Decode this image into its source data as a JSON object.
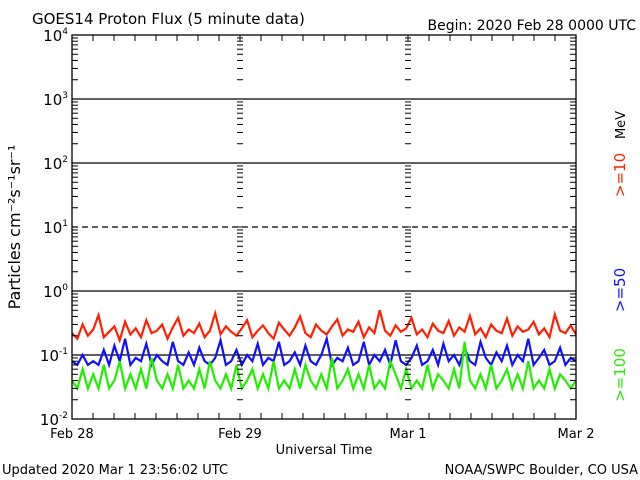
{
  "chart_data": {
    "type": "line",
    "title": "GOES14 Proton Flux (5 minute data)",
    "begin_label": "Begin: 2020 Feb 28 0000 UTC",
    "xlabel": "Universal Time",
    "ylabel": "Particles cm⁻²s⁻¹sr⁻¹",
    "yscale": "log",
    "ylim": [
      0.01,
      10000
    ],
    "ytick_labels": [
      {
        "base": "10",
        "exp": "4",
        "value": 10000
      },
      {
        "base": "10",
        "exp": "3",
        "value": 1000
      },
      {
        "base": "10",
        "exp": "2",
        "value": 100
      },
      {
        "base": "10",
        "exp": "1",
        "value": 10
      },
      {
        "base": "10",
        "exp": "0",
        "value": 1
      },
      {
        "base": "10",
        "exp": "-1",
        "value": 0.1
      },
      {
        "base": "10",
        "exp": "-2",
        "value": 0.01
      }
    ],
    "xtick_labels": [
      "Feb 28",
      "Feb 29",
      "Mar 1",
      "Mar 2"
    ],
    "xlim_days": [
      0,
      3
    ],
    "units_label": "MeV",
    "grid": "horizontal lines at each decade; dashed at 10^1",
    "series": [
      {
        "name": ">=10",
        "color": "#ff2000",
        "values": [
          0.22,
          0.18,
          0.3,
          0.2,
          0.25,
          0.42,
          0.19,
          0.23,
          0.28,
          0.17,
          0.33,
          0.21,
          0.26,
          0.19,
          0.35,
          0.22,
          0.24,
          0.3,
          0.18,
          0.27,
          0.38,
          0.2,
          0.25,
          0.22,
          0.31,
          0.19,
          0.24,
          0.45,
          0.21,
          0.28,
          0.23,
          0.2,
          0.26,
          0.35,
          0.19,
          0.24,
          0.29,
          0.22,
          0.18,
          0.32,
          0.25,
          0.2,
          0.27,
          0.4,
          0.22,
          0.19,
          0.3,
          0.24,
          0.21,
          0.28,
          0.36,
          0.2,
          0.25,
          0.23,
          0.33,
          0.19,
          0.27,
          0.22,
          0.5,
          0.24,
          0.2,
          0.29,
          0.23,
          0.26,
          0.38,
          0.21,
          0.25,
          0.19,
          0.31,
          0.24,
          0.22,
          0.34,
          0.2,
          0.27,
          0.23,
          0.41,
          0.21,
          0.26,
          0.19,
          0.3,
          0.24,
          0.22,
          0.37,
          0.2,
          0.28,
          0.23,
          0.25,
          0.33,
          0.21,
          0.26,
          0.19,
          0.43,
          0.24,
          0.22,
          0.29,
          0.21
        ]
      },
      {
        "name": ">=50",
        "color": "#1010ff",
        "values": [
          0.08,
          0.07,
          0.1,
          0.07,
          0.08,
          0.07,
          0.12,
          0.07,
          0.14,
          0.08,
          0.18,
          0.07,
          0.09,
          0.08,
          0.15,
          0.07,
          0.1,
          0.08,
          0.07,
          0.16,
          0.08,
          0.07,
          0.11,
          0.07,
          0.13,
          0.08,
          0.07,
          0.09,
          0.17,
          0.07,
          0.08,
          0.12,
          0.07,
          0.1,
          0.08,
          0.15,
          0.07,
          0.09,
          0.08,
          0.16,
          0.07,
          0.08,
          0.11,
          0.07,
          0.14,
          0.08,
          0.07,
          0.1,
          0.18,
          0.07,
          0.09,
          0.08,
          0.13,
          0.07,
          0.08,
          0.16,
          0.07,
          0.1,
          0.08,
          0.12,
          0.07,
          0.17,
          0.08,
          0.07,
          0.09,
          0.14,
          0.07,
          0.08,
          0.12,
          0.07,
          0.15,
          0.08,
          0.1,
          0.07,
          0.13,
          0.08,
          0.07,
          0.16,
          0.09,
          0.07,
          0.11,
          0.08,
          0.14,
          0.07,
          0.1,
          0.08,
          0.18,
          0.07,
          0.09,
          0.12,
          0.07,
          0.08,
          0.13,
          0.07,
          0.09,
          0.08
        ]
      },
      {
        "name": ">=100",
        "color": "#22ee00",
        "values": [
          0.04,
          0.03,
          0.06,
          0.03,
          0.05,
          0.03,
          0.07,
          0.03,
          0.04,
          0.08,
          0.03,
          0.05,
          0.03,
          0.06,
          0.03,
          0.09,
          0.04,
          0.03,
          0.05,
          0.03,
          0.07,
          0.03,
          0.04,
          0.03,
          0.06,
          0.03,
          0.08,
          0.04,
          0.03,
          0.05,
          0.03,
          0.07,
          0.03,
          0.04,
          0.06,
          0.03,
          0.05,
          0.03,
          0.08,
          0.03,
          0.04,
          0.03,
          0.06,
          0.03,
          0.07,
          0.04,
          0.03,
          0.05,
          0.03,
          0.09,
          0.03,
          0.04,
          0.06,
          0.03,
          0.05,
          0.03,
          0.07,
          0.03,
          0.04,
          0.03,
          0.08,
          0.05,
          0.03,
          0.06,
          0.03,
          0.04,
          0.03,
          0.07,
          0.03,
          0.05,
          0.04,
          0.03,
          0.06,
          0.03,
          0.16,
          0.04,
          0.03,
          0.05,
          0.03,
          0.07,
          0.03,
          0.04,
          0.06,
          0.03,
          0.05,
          0.03,
          0.08,
          0.03,
          0.04,
          0.03,
          0.06,
          0.03,
          0.05,
          0.04,
          0.03,
          0.04
        ]
      }
    ]
  },
  "footer": {
    "updated": "Updated 2020 Mar  1 23:56:02 UTC",
    "source": "NOAA/SWPC Boulder, CO USA"
  }
}
